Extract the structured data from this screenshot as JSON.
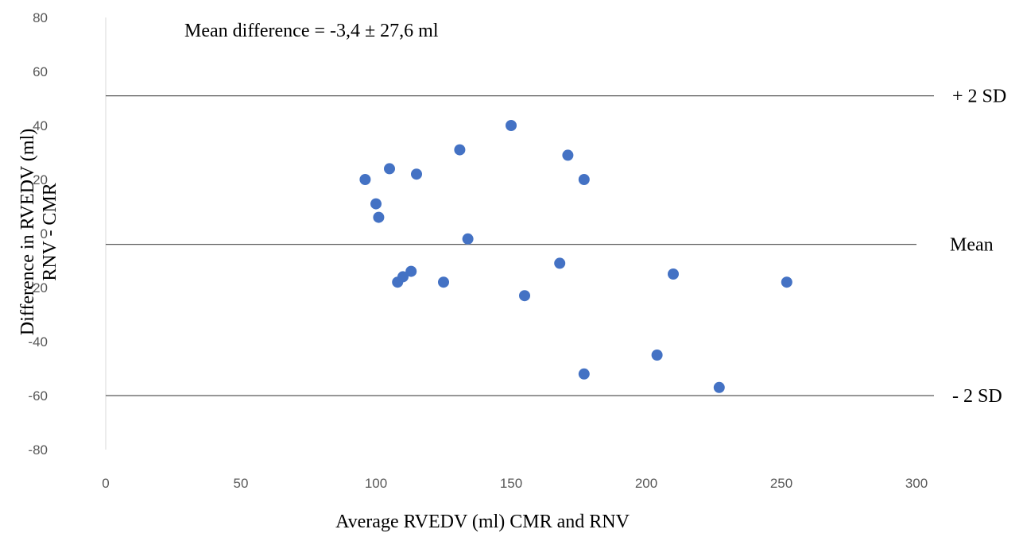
{
  "chart_data": {
    "type": "scatter",
    "title": "",
    "annotation": "Mean difference = -3,4 ± 27,6 ml",
    "xlabel": "Average RVEDV (ml) CMR and RNV",
    "ylabel_line1": "Difference in RVEDV (ml)",
    "ylabel_line2": "RNV - CMR",
    "xlim": [
      0,
      300
    ],
    "ylim": [
      -80,
      80
    ],
    "x_ticks": [
      0,
      50,
      100,
      150,
      200,
      250,
      300
    ],
    "y_ticks": [
      80,
      60,
      40,
      20,
      0,
      -20,
      -40,
      -60,
      -80
    ],
    "grid": false,
    "marker_color": "#4472C4",
    "line_color": "#595959",
    "reference_lines": [
      {
        "label": "+ 2 SD",
        "y": 51
      },
      {
        "label": "Mean",
        "y": -4
      },
      {
        "label": "- 2 SD",
        "y": -60
      }
    ],
    "points": [
      {
        "x": 96,
        "y": 20
      },
      {
        "x": 100,
        "y": 11
      },
      {
        "x": 101,
        "y": 6
      },
      {
        "x": 105,
        "y": 24
      },
      {
        "x": 108,
        "y": -18
      },
      {
        "x": 110,
        "y": -16
      },
      {
        "x": 113,
        "y": -14
      },
      {
        "x": 115,
        "y": 22
      },
      {
        "x": 125,
        "y": -18
      },
      {
        "x": 131,
        "y": 31
      },
      {
        "x": 134,
        "y": -2
      },
      {
        "x": 150,
        "y": 40
      },
      {
        "x": 155,
        "y": -23
      },
      {
        "x": 168,
        "y": -11
      },
      {
        "x": 171,
        "y": 29
      },
      {
        "x": 177,
        "y": 20
      },
      {
        "x": 177,
        "y": -52
      },
      {
        "x": 204,
        "y": -45
      },
      {
        "x": 210,
        "y": -15
      },
      {
        "x": 227,
        "y": -57
      },
      {
        "x": 252,
        "y": -18
      }
    ]
  }
}
